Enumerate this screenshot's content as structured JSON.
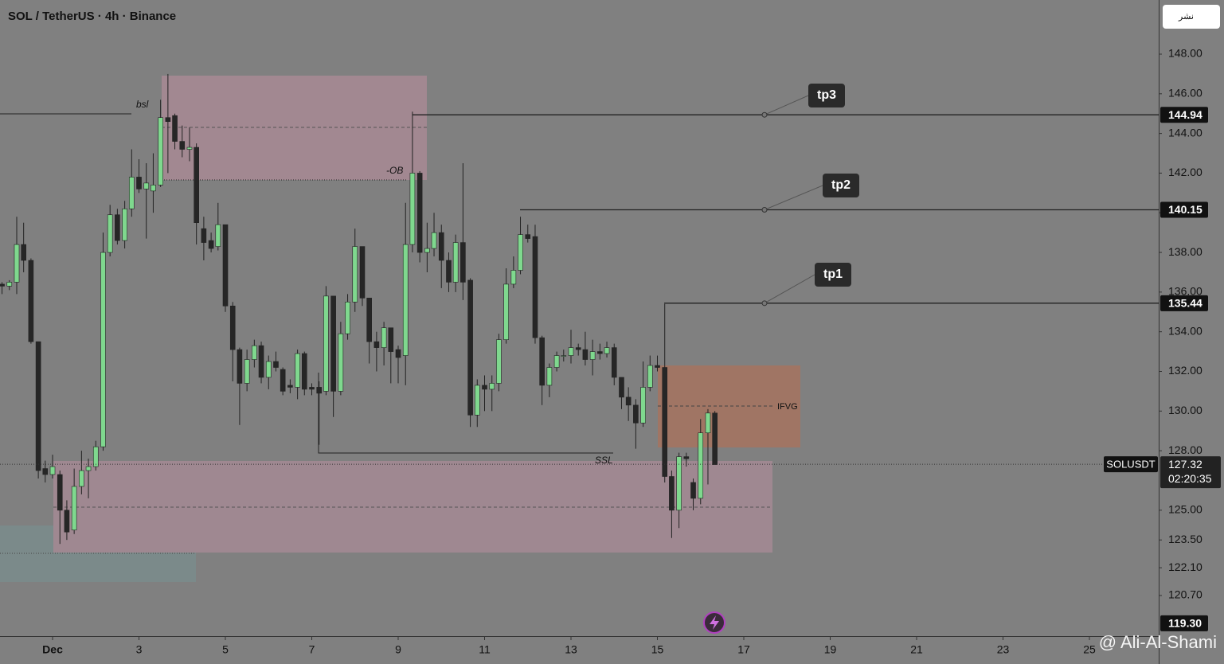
{
  "chart_data": {
    "type": "candlestick",
    "title": "SOL / TetherUS · 4h · Binance",
    "up_color": "#7fd88e",
    "down_color": "#262626",
    "xlim": [
      -0.217,
      26.604
    ],
    "xticks": [
      {
        "value": 1,
        "label": "Dec"
      },
      3,
      5,
      7,
      9,
      11,
      13,
      15,
      17,
      19,
      21,
      23,
      25
    ],
    "ylim": [
      118.61,
      150.73
    ],
    "yticks": [
      {
        "value": 148,
        "label": "148.00"
      },
      {
        "value": 146,
        "label": "146.00"
      },
      {
        "value": 144,
        "label": "144.00"
      },
      {
        "value": 142,
        "label": "142.00"
      },
      {
        "value": 140,
        "label": "140.00"
      },
      {
        "value": 138,
        "label": "138.00"
      },
      {
        "value": 136,
        "label": "136.00"
      },
      {
        "value": 134,
        "label": "134.00"
      },
      {
        "value": 132,
        "label": "132.00"
      },
      {
        "value": 130,
        "label": "130.00"
      },
      {
        "value": 128,
        "label": "128.00"
      },
      {
        "value": 125,
        "label": "125.00"
      },
      {
        "value": 123.5,
        "label": "123.50"
      },
      {
        "value": 122.1,
        "label": "122.10"
      },
      {
        "value": 120.7,
        "label": "120.70"
      }
    ],
    "x": [
      -0.17,
      0,
      0.17,
      0.33,
      0.5,
      0.67,
      0.83,
      1,
      1.17,
      1.33,
      1.5,
      1.67,
      1.83,
      2,
      2.17,
      2.33,
      2.5,
      2.67,
      2.83,
      3,
      3.17,
      3.33,
      3.5,
      3.67,
      3.83,
      4,
      4.17,
      4.33,
      4.5,
      4.67,
      4.83,
      5,
      5.17,
      5.33,
      5.5,
      5.67,
      5.83,
      6,
      6.17,
      6.33,
      6.5,
      6.67,
      6.83,
      7,
      7.17,
      7.33,
      7.5,
      7.67,
      7.83,
      8,
      8.17,
      8.33,
      8.5,
      8.67,
      8.83,
      9,
      9.17,
      9.33,
      9.5,
      9.67,
      9.83,
      10,
      10.17,
      10.33,
      10.5,
      10.67,
      10.83,
      11,
      11.17,
      11.33,
      11.5,
      11.67,
      11.83,
      12,
      12.17,
      12.33,
      12.5,
      12.67,
      12.83,
      13,
      13.17,
      13.33,
      13.5,
      13.67,
      13.83,
      14,
      14.17,
      14.33,
      14.5,
      14.67,
      14.83,
      15,
      15.17,
      15.33,
      15.5,
      15.67,
      15.83,
      16,
      16.17,
      16.33
    ],
    "open": [
      136.4,
      136.3,
      136.5,
      138.4,
      137.6,
      133.5,
      127.1,
      126.8,
      126.8,
      125.0,
      124.0,
      126.2,
      127.0,
      127.2,
      128.2,
      138.0,
      139.9,
      138.6,
      140.2,
      141.8,
      141.2,
      141.1,
      141.4,
      144.8,
      144.9,
      143.6,
      143.2,
      143.3,
      139.2,
      138.6,
      138.3,
      139.4,
      135.3,
      133.1,
      131.4,
      132.6,
      133.3,
      131.7,
      132.5,
      132.1,
      131.3,
      131.2,
      132.9,
      131.2,
      131.2,
      131.0,
      135.8,
      131.0,
      133.9,
      135.5,
      138.3,
      135.7,
      133.5,
      133.2,
      134.2,
      133.1,
      132.8,
      138.4,
      142.0,
      138.0,
      138.2,
      139.0,
      137.6,
      136.5,
      138.5,
      136.6,
      129.8,
      131.3,
      131.1,
      131.4,
      133.6,
      136.4,
      137.1,
      138.9,
      138.8,
      133.7,
      131.3,
      132.2,
      132.8,
      132.8,
      133.2,
      133.1,
      132.6,
      133.0,
      132.9,
      133.2,
      131.7,
      130.7,
      130.3,
      129.4,
      131.2,
      132.3,
      132.2,
      126.7,
      125.0,
      127.7,
      126.4,
      125.6,
      128.9,
      129.9
    ],
    "high": [
      136.5,
      136.6,
      139.8,
      139.5,
      137.7,
      133.5,
      127.5,
      127.8,
      127.0,
      125.5,
      127.1,
      128.0,
      127.6,
      128.5,
      139.0,
      140.4,
      140.2,
      140.6,
      143.2,
      142.7,
      142.5,
      143.0,
      145.7,
      147.0,
      145.0,
      144.4,
      144.3,
      143.5,
      139.8,
      139.0,
      140.5,
      139.4,
      135.5,
      133.2,
      133.1,
      133.6,
      133.5,
      132.8,
      133.0,
      132.2,
      131.6,
      133.1,
      133.0,
      131.4,
      131.5,
      136.3,
      135.8,
      134.5,
      135.9,
      139.2,
      138.3,
      135.7,
      134.0,
      134.5,
      134.2,
      133.3,
      140.5,
      145.1,
      142.1,
      139.5,
      140.0,
      139.4,
      138.0,
      138.9,
      142.5,
      136.7,
      131.6,
      131.8,
      131.8,
      133.9,
      137.2,
      137.8,
      139.8,
      139.4,
      139.4,
      133.8,
      132.4,
      133.0,
      133.1,
      134.1,
      133.4,
      134.0,
      133.6,
      133.4,
      133.5,
      133.4,
      131.7,
      131.2,
      130.6,
      132.5,
      132.8,
      132.8,
      135.4,
      127.0,
      127.9,
      127.9,
      126.6,
      129.6,
      130.1,
      130.0
    ],
    "low": [
      135.9,
      136.1,
      135.9,
      137.0,
      133.4,
      126.6,
      126.4,
      126.6,
      123.3,
      123.5,
      123.8,
      125.8,
      125.6,
      127.0,
      128.0,
      137.8,
      138.4,
      138.2,
      139.8,
      141.0,
      138.7,
      140.0,
      141.3,
      142.0,
      143.2,
      142.8,
      142.6,
      138.4,
      137.6,
      138.0,
      138.1,
      135.0,
      131.5,
      129.3,
      131.0,
      132.2,
      131.4,
      131.1,
      132.0,
      130.8,
      130.9,
      130.6,
      130.8,
      130.8,
      128.3,
      130.8,
      129.7,
      130.8,
      133.6,
      135.0,
      135.3,
      132.4,
      132.0,
      132.3,
      131.4,
      131.4,
      131.3,
      138.0,
      137.5,
      137.0,
      137.8,
      136.2,
      136.0,
      136.0,
      135.6,
      129.2,
      129.2,
      130.0,
      130.0,
      131.0,
      133.4,
      136.2,
      136.9,
      138.5,
      133.4,
      130.3,
      130.7,
      132.0,
      132.5,
      132.4,
      132.8,
      132.3,
      131.8,
      132.6,
      132.7,
      131.3,
      130.1,
      129.5,
      128.1,
      129.2,
      131.0,
      132.0,
      126.4,
      123.6,
      124.1,
      127.2,
      125.0,
      125.3,
      126.3,
      127.3
    ],
    "close": [
      136.3,
      136.5,
      138.4,
      137.6,
      133.5,
      127.0,
      126.8,
      127.2,
      125.0,
      123.9,
      126.2,
      127.0,
      127.2,
      128.2,
      138.0,
      139.9,
      138.6,
      140.2,
      141.8,
      141.2,
      141.5,
      141.4,
      144.8,
      144.6,
      143.6,
      143.2,
      143.3,
      139.5,
      138.5,
      138.2,
      139.4,
      135.3,
      133.1,
      131.4,
      132.6,
      133.3,
      131.7,
      132.5,
      132.2,
      131.0,
      131.2,
      132.9,
      131.1,
      131.1,
      130.9,
      135.8,
      131.0,
      133.9,
      135.5,
      138.3,
      135.7,
      133.5,
      133.2,
      134.2,
      133.0,
      132.7,
      138.4,
      142.0,
      138.0,
      138.2,
      139.0,
      137.6,
      136.5,
      138.5,
      136.5,
      129.8,
      131.3,
      131.1,
      131.4,
      133.6,
      136.4,
      137.1,
      138.9,
      138.7,
      133.7,
      131.3,
      132.2,
      132.8,
      132.8,
      133.2,
      133.1,
      132.6,
      133.0,
      132.9,
      133.2,
      131.7,
      130.7,
      130.3,
      129.4,
      131.2,
      132.3,
      132.2,
      126.7,
      125.0,
      127.7,
      127.6,
      125.6,
      128.9,
      129.9,
      127.3
    ],
    "levels": [
      {
        "name": "tp3",
        "value": 144.94
      },
      {
        "name": "tp2",
        "value": 140.15
      },
      {
        "name": "tp1",
        "value": 135.44
      }
    ],
    "last": {
      "symbol": "SOLUSDT",
      "value": 127.32,
      "countdown": "02:20:35"
    },
    "low_tag": {
      "value": 119.3,
      "label": "119.30"
    },
    "annotations": [
      "bsl",
      "-OB",
      "SSL",
      "IFVG"
    ],
    "watermark": "@ Ali-Al-Shami",
    "button": "نشر"
  }
}
